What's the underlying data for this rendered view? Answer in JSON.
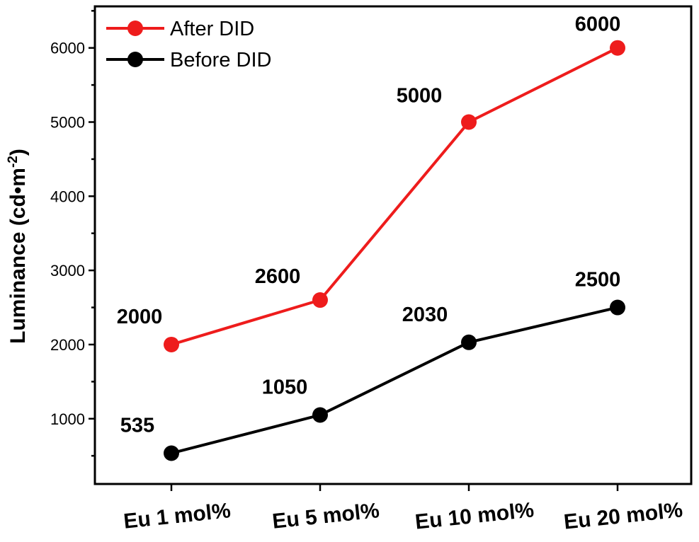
{
  "chart_data": {
    "type": "line",
    "categories": [
      "Eu 1 mol%",
      "Eu 5 mol%",
      "Eu 10 mol%",
      "Eu 20 mol%"
    ],
    "series": [
      {
        "name": "After DID",
        "color": "#ee1c1c",
        "values": [
          2000,
          2600,
          5000,
          6000
        ],
        "labels": [
          "2000",
          "2600",
          "5000",
          "6000"
        ]
      },
      {
        "name": "Before DID",
        "color": "#000000",
        "values": [
          535,
          1050,
          2030,
          2500
        ],
        "labels": [
          "535",
          "1050",
          "2030",
          "2500"
        ]
      }
    ],
    "ylabel": "Luminance (cd•m",
    "ylabel_sup": "-2",
    "ylabel_close": ")",
    "ylim": [
      120,
      6560
    ],
    "yticks": [
      "1000",
      "2000",
      "3000",
      "4000",
      "5000",
      "6000"
    ],
    "minor_tick_step": 500,
    "legend_position": "top-left",
    "grid": false
  }
}
